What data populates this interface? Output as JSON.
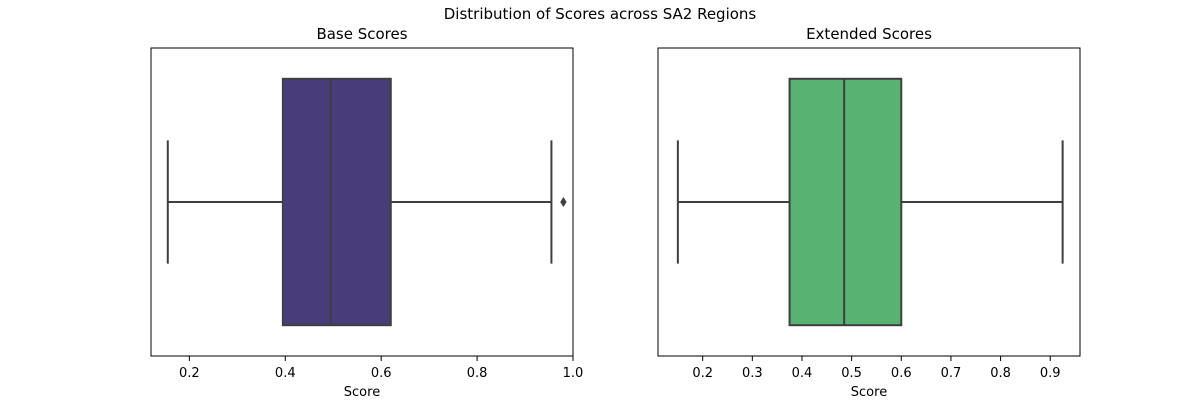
{
  "suptitle": "Distribution of Scores across SA2 Regions",
  "chart_data": [
    {
      "type": "box",
      "title": "Base Scores",
      "xlabel": "Score",
      "ylabel": "",
      "xlim": [
        0.12,
        1.0
      ],
      "xticks": [
        0.2,
        0.4,
        0.6,
        0.8,
        1.0
      ],
      "xtick_labels": [
        "0.2",
        "0.4",
        "0.6",
        "0.8",
        "1.0"
      ],
      "color": "#483d7a",
      "box": {
        "whislo": 0.155,
        "q1": 0.395,
        "med": 0.495,
        "q3": 0.62,
        "whishi": 0.955,
        "fliers": [
          0.98
        ]
      }
    },
    {
      "type": "box",
      "title": "Extended Scores",
      "xlabel": "Score",
      "ylabel": "",
      "xlim": [
        0.11,
        0.96
      ],
      "xticks": [
        0.2,
        0.3,
        0.4,
        0.5,
        0.6,
        0.7,
        0.8,
        0.9
      ],
      "xtick_labels": [
        "0.2",
        "0.3",
        "0.4",
        "0.5",
        "0.6",
        "0.7",
        "0.8",
        "0.9"
      ],
      "color": "#58b272",
      "box": {
        "whislo": 0.15,
        "q1": 0.375,
        "med": 0.485,
        "q3": 0.6,
        "whishi": 0.925,
        "fliers": []
      }
    }
  ]
}
